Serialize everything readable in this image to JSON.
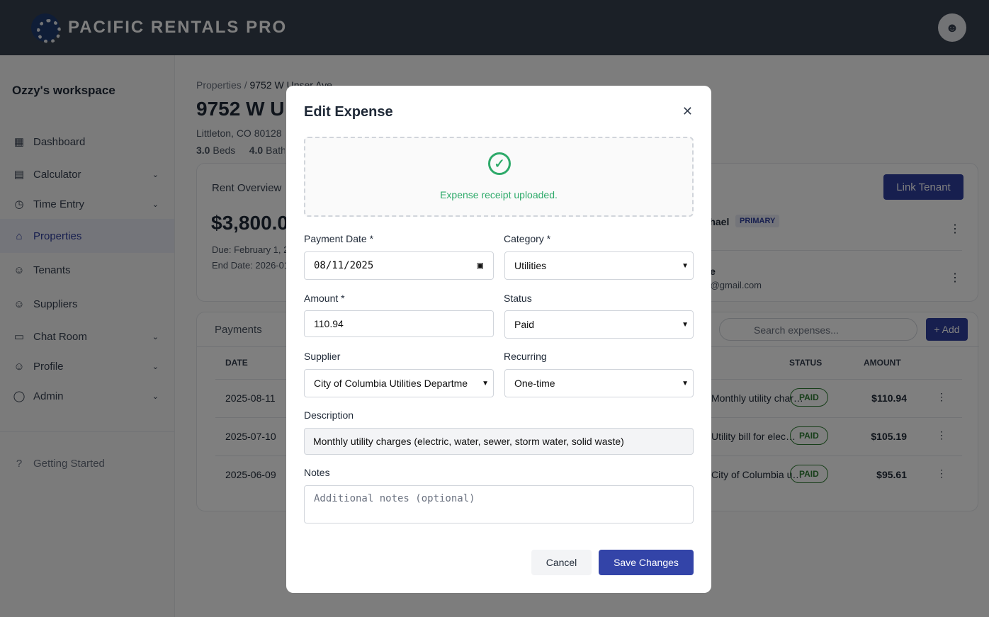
{
  "app": {
    "brand": "PACIFIC RENTALS PRO"
  },
  "sidebar": {
    "workspace": "Ozzy's workspace",
    "items": [
      {
        "label": "Dashboard",
        "icon": "grid-icon",
        "chev": false
      },
      {
        "label": "Calculator",
        "icon": "calculator-icon",
        "chev": true
      },
      {
        "label": "Time Entry",
        "icon": "clock-icon",
        "chev": true
      },
      {
        "label": "Properties",
        "icon": "home-icon",
        "chev": false,
        "active": true
      },
      {
        "label": "Tenants",
        "icon": "user-icon",
        "chev": false
      },
      {
        "label": "Suppliers",
        "icon": "users-icon",
        "chev": false
      },
      {
        "label": "Chat Room",
        "icon": "chat-icon",
        "chev": true
      },
      {
        "label": "Profile",
        "icon": "user-icon",
        "chev": true
      },
      {
        "label": "Admin",
        "icon": "shield-icon",
        "chev": true
      }
    ],
    "getting_started": "Getting Started"
  },
  "property": {
    "breadcrumb_root": "Properties",
    "breadcrumb_current": "9752 W Unser Ave",
    "title": "9752 W Unser Ave",
    "address": "Littleton, CO 80128",
    "beds": "3.0",
    "beds_label": "Beds",
    "baths": "4.0",
    "baths_label": "Baths"
  },
  "rent": {
    "title": "Rent Overview",
    "amount": "$3,800.00",
    "due": "Due: February 1, 2025",
    "end": "End Date: 2026-01-31"
  },
  "tenants": {
    "link_button": "Link Tenant",
    "rows": [
      {
        "name": "Michael",
        "badge": "PRIMARY",
        "email": ""
      },
      {
        "name": "Jane",
        "email": "jane@gmail.com"
      }
    ]
  },
  "expenses": {
    "tab": "Payments",
    "search_placeholder": "Search expenses...",
    "add_button": "+ Add",
    "columns": {
      "date": "DATE",
      "status": "STATUS",
      "amount": "AMOUNT"
    },
    "rows": [
      {
        "date": "2025-08-11",
        "desc": "Monthly utility char…",
        "status": "PAID",
        "amount": "$110.94"
      },
      {
        "date": "2025-07-10",
        "desc": "Utility bill for elec…",
        "status": "PAID",
        "amount": "$105.19"
      },
      {
        "date": "2025-06-09",
        "desc": "City of Columbia u…",
        "status": "PAID",
        "amount": "$95.61"
      }
    ]
  },
  "modal": {
    "title": "Edit Expense",
    "upload_message": "Expense receipt uploaded.",
    "payment_date_label": "Payment Date *",
    "payment_date": "08/11/2025",
    "category_label": "Category *",
    "category": "Utilities",
    "amount_label": "Amount *",
    "amount": "110.94",
    "status_label": "Status",
    "status": "Paid",
    "supplier_label": "Supplier",
    "supplier": "City of Columbia Utilities Departme",
    "recurring_label": "Recurring",
    "recurring": "One-time",
    "description_label": "Description",
    "description": "Monthly utility charges (electric, water, sewer, storm water, solid waste)",
    "notes_label": "Notes",
    "notes_placeholder": "Additional notes (optional)",
    "cancel": "Cancel",
    "save": "Save Changes"
  }
}
